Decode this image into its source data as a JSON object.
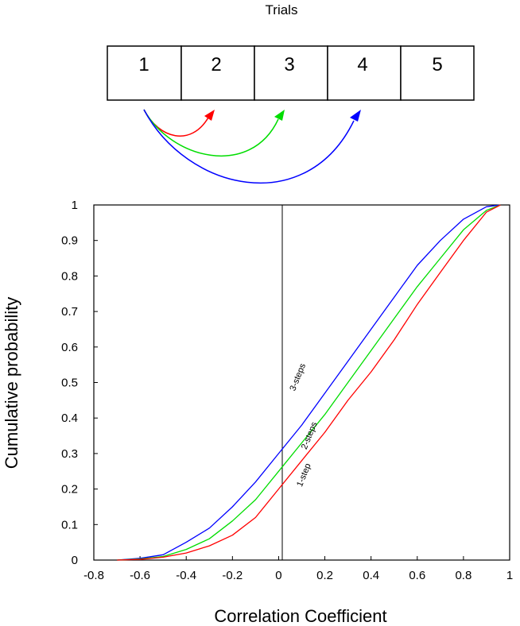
{
  "trials_panel": {
    "title": "Trials",
    "trial_labels": [
      "1",
      "2",
      "3",
      "4",
      "5"
    ],
    "arrows": [
      {
        "from": "1",
        "to": "2",
        "color": "#ff0000"
      },
      {
        "from": "1",
        "to": "3",
        "color": "#00dd00"
      },
      {
        "from": "1",
        "to": "4",
        "color": "#0000ff"
      }
    ]
  },
  "chart_data": {
    "type": "line",
    "title": "",
    "xlabel": "Correlation Coefficient",
    "ylabel": "Cumulative probability",
    "xlim": [
      -0.8,
      1
    ],
    "ylim": [
      0,
      1
    ],
    "xticks": [
      "-0.8",
      "-0.6",
      "-0.4",
      "-0.2",
      "0",
      "0.2",
      "0.4",
      "0.6",
      "0.8",
      "1"
    ],
    "yticks": [
      "0",
      "0.1",
      "0.2",
      "0.3",
      "0.4",
      "0.5",
      "0.6",
      "0.7",
      "0.8",
      "0.9",
      "1"
    ],
    "grid": false,
    "reference_line_x": 0,
    "series": [
      {
        "name": "3-steps",
        "color": "#0000ff",
        "x": [
          -0.7,
          -0.6,
          -0.5,
          -0.4,
          -0.3,
          -0.2,
          -0.1,
          0,
          0.1,
          0.2,
          0.3,
          0.4,
          0.5,
          0.6,
          0.7,
          0.8,
          0.9,
          0.96
        ],
        "y": [
          0,
          0.005,
          0.015,
          0.05,
          0.09,
          0.15,
          0.22,
          0.3,
          0.38,
          0.47,
          0.56,
          0.65,
          0.74,
          0.83,
          0.9,
          0.96,
          0.995,
          1
        ]
      },
      {
        "name": "2-steps",
        "color": "#00dd00",
        "x": [
          -0.7,
          -0.6,
          -0.5,
          -0.4,
          -0.3,
          -0.2,
          -0.1,
          0,
          0.1,
          0.2,
          0.3,
          0.4,
          0.5,
          0.6,
          0.7,
          0.8,
          0.9,
          0.96
        ],
        "y": [
          0,
          0.003,
          0.01,
          0.03,
          0.06,
          0.11,
          0.17,
          0.25,
          0.33,
          0.41,
          0.5,
          0.59,
          0.68,
          0.77,
          0.85,
          0.93,
          0.985,
          1
        ]
      },
      {
        "name": "1-step",
        "color": "#ff0000",
        "x": [
          -0.7,
          -0.6,
          -0.5,
          -0.4,
          -0.3,
          -0.2,
          -0.1,
          0,
          0.1,
          0.2,
          0.3,
          0.4,
          0.5,
          0.6,
          0.7,
          0.8,
          0.9,
          0.96
        ],
        "y": [
          0,
          0.002,
          0.008,
          0.02,
          0.04,
          0.07,
          0.12,
          0.2,
          0.28,
          0.36,
          0.45,
          0.53,
          0.62,
          0.72,
          0.81,
          0.9,
          0.98,
          1
        ]
      }
    ],
    "annotations": [
      {
        "text": "3-steps",
        "x": 0.07,
        "y": 0.475,
        "color": "#0000ff"
      },
      {
        "text": "2-steps",
        "x": 0.12,
        "y": 0.31,
        "color": "#00dd00"
      },
      {
        "text": "1-step",
        "x": 0.1,
        "y": 0.205,
        "color": "#ff0000"
      }
    ]
  }
}
